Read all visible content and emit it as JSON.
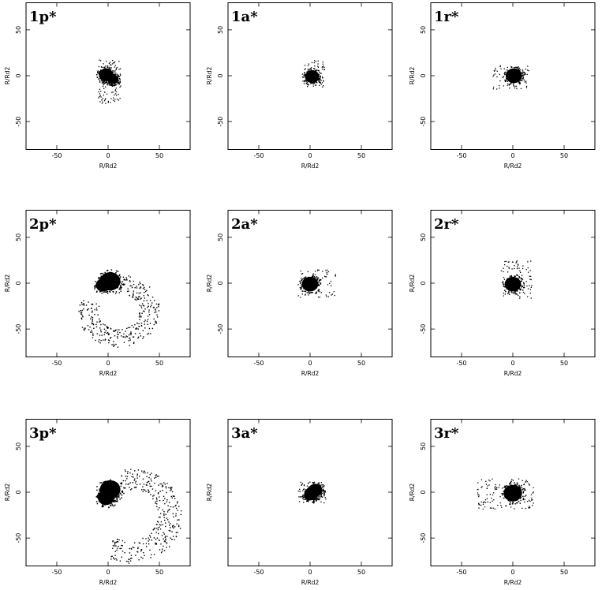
{
  "figure": {
    "panels": [
      {
        "id": "1p",
        "label": "1p*",
        "xlabel": "R/Rd2",
        "ylabel": "R/Rd2",
        "show_xticklabels": true,
        "show_yticklabels": true,
        "blobs": [
          {
            "x": -2,
            "y": 1,
            "r": 7
          },
          {
            "x": 5,
            "y": -4,
            "r": 5
          }
        ],
        "scatter_regions": [
          {
            "x0": -10,
            "x1": 12,
            "y0": -30,
            "y1": 18,
            "n": 120
          }
        ]
      },
      {
        "id": "1a",
        "label": "1a*",
        "xlabel": "R/Rd2",
        "ylabel": "R/Rd2",
        "show_xticklabels": true,
        "show_yticklabels": true,
        "blobs": [
          {
            "x": 2,
            "y": -1,
            "r": 7
          }
        ],
        "scatter_regions": [
          {
            "x0": -8,
            "x1": 14,
            "y0": -12,
            "y1": 18,
            "n": 70
          }
        ]
      },
      {
        "id": "1r",
        "label": "1r*",
        "xlabel": "R/Rd2",
        "ylabel": "R/Rd2",
        "show_xticklabels": true,
        "show_yticklabels": true,
        "blobs": [
          {
            "x": 1,
            "y": 0,
            "r": 8
          }
        ],
        "scatter_regions": [
          {
            "x0": -20,
            "x1": 15,
            "y0": -15,
            "y1": 12,
            "n": 70
          }
        ]
      },
      {
        "id": "2p",
        "label": "2p*",
        "xlabel": "R/Rd2",
        "ylabel": "R/Rd2",
        "show_xticklabels": true,
        "show_yticklabels": true,
        "blobs": [
          {
            "x": 2,
            "y": 2,
            "r": 10
          },
          {
            "x": -5,
            "y": -2,
            "r": 7
          }
        ],
        "arc": {
          "cx": 10,
          "cy": -30,
          "r": 30,
          "start_deg": 90,
          "end_deg": -200,
          "width": 10,
          "n": 320
        }
      },
      {
        "id": "2a",
        "label": "2a*",
        "xlabel": "R/Rd2",
        "ylabel": "R/Rd2",
        "show_xticklabels": true,
        "show_yticklabels": true,
        "blobs": [
          {
            "x": 0,
            "y": -1,
            "r": 8
          }
        ],
        "scatter_regions": [
          {
            "x0": -12,
            "x1": 25,
            "y0": -15,
            "y1": 15,
            "n": 80
          }
        ]
      },
      {
        "id": "2r",
        "label": "2r*",
        "xlabel": "R/Rd2",
        "ylabel": "R/Rd2",
        "show_xticklabels": true,
        "show_yticklabels": true,
        "blobs": [
          {
            "x": 0,
            "y": -1,
            "r": 8
          }
        ],
        "scatter_regions": [
          {
            "x0": -12,
            "x1": 18,
            "y0": -16,
            "y1": 25,
            "n": 80
          }
        ]
      },
      {
        "id": "3p",
        "label": "3p*",
        "xlabel": "R/Rd2",
        "ylabel": "R/Rd2",
        "show_xticklabels": true,
        "show_yticklabels": true,
        "blobs": [
          {
            "x": 2,
            "y": 3,
            "r": 10
          },
          {
            "x": -2,
            "y": -6,
            "r": 8
          }
        ],
        "arc": {
          "cx": 20,
          "cy": -25,
          "r": 40,
          "start_deg": 100,
          "end_deg": -120,
          "width": 12,
          "n": 330
        }
      },
      {
        "id": "3a",
        "label": "3a*",
        "xlabel": "R/Rd2",
        "ylabel": "R/Rd2",
        "show_xticklabels": true,
        "show_yticklabels": false,
        "blobs": [
          {
            "x": 5,
            "y": 2,
            "r": 7
          },
          {
            "x": 0,
            "y": -3,
            "r": 6
          }
        ],
        "scatter_regions": [
          {
            "x0": -12,
            "x1": 15,
            "y0": -12,
            "y1": 12,
            "n": 70
          }
        ]
      },
      {
        "id": "3r",
        "label": "3r*",
        "xlabel": "R/Rd2",
        "ylabel": "R/Rd2",
        "show_xticklabels": true,
        "show_yticklabels": true,
        "blobs": [
          {
            "x": 0,
            "y": -1,
            "r": 9
          }
        ],
        "scatter_regions": [
          {
            "x0": -35,
            "x1": 20,
            "y0": -18,
            "y1": 15,
            "n": 140
          }
        ]
      }
    ]
  },
  "chart_data": {
    "type": "scatter",
    "xlim": [
      -80,
      80
    ],
    "ylim": [
      -80,
      80
    ],
    "xticks": [
      -50,
      0,
      50
    ],
    "yticks": [
      50,
      0,
      -50
    ],
    "xticklabels": [
      "-50",
      "0",
      "50"
    ],
    "yticklabels": [
      "50",
      "0",
      "-50"
    ],
    "xlabel": "R/Rd2",
    "ylabel": "R/Rd2",
    "grid": false,
    "panels": [
      "1p*",
      "1a*",
      "1r*",
      "2p*",
      "2a*",
      "2r*",
      "3p*",
      "3a*",
      "3r*"
    ],
    "point_color": "#000000"
  }
}
